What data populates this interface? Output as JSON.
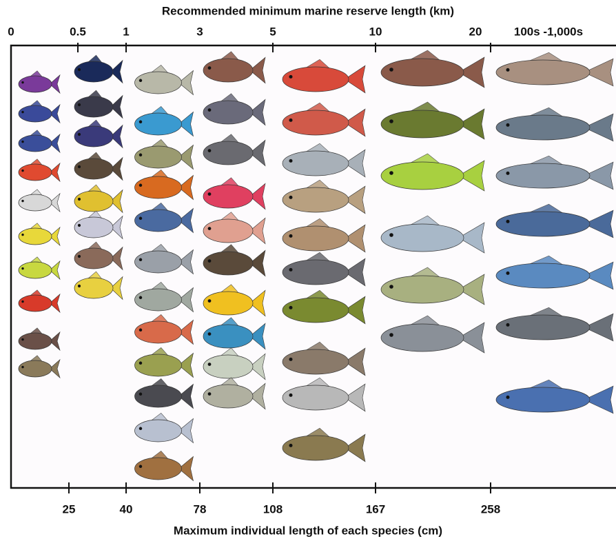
{
  "top_axis": {
    "title": "Recommended minimum marine reserve length (km)",
    "labels": [
      "0",
      "0.5",
      "1",
      "3",
      "5",
      "10",
      "20",
      "100s -1,000s"
    ]
  },
  "bottom_axis": {
    "title": "Maximum individual length of each species (cm)",
    "labels": [
      "25",
      "40",
      "78",
      "108",
      "167",
      "258"
    ]
  }
}
